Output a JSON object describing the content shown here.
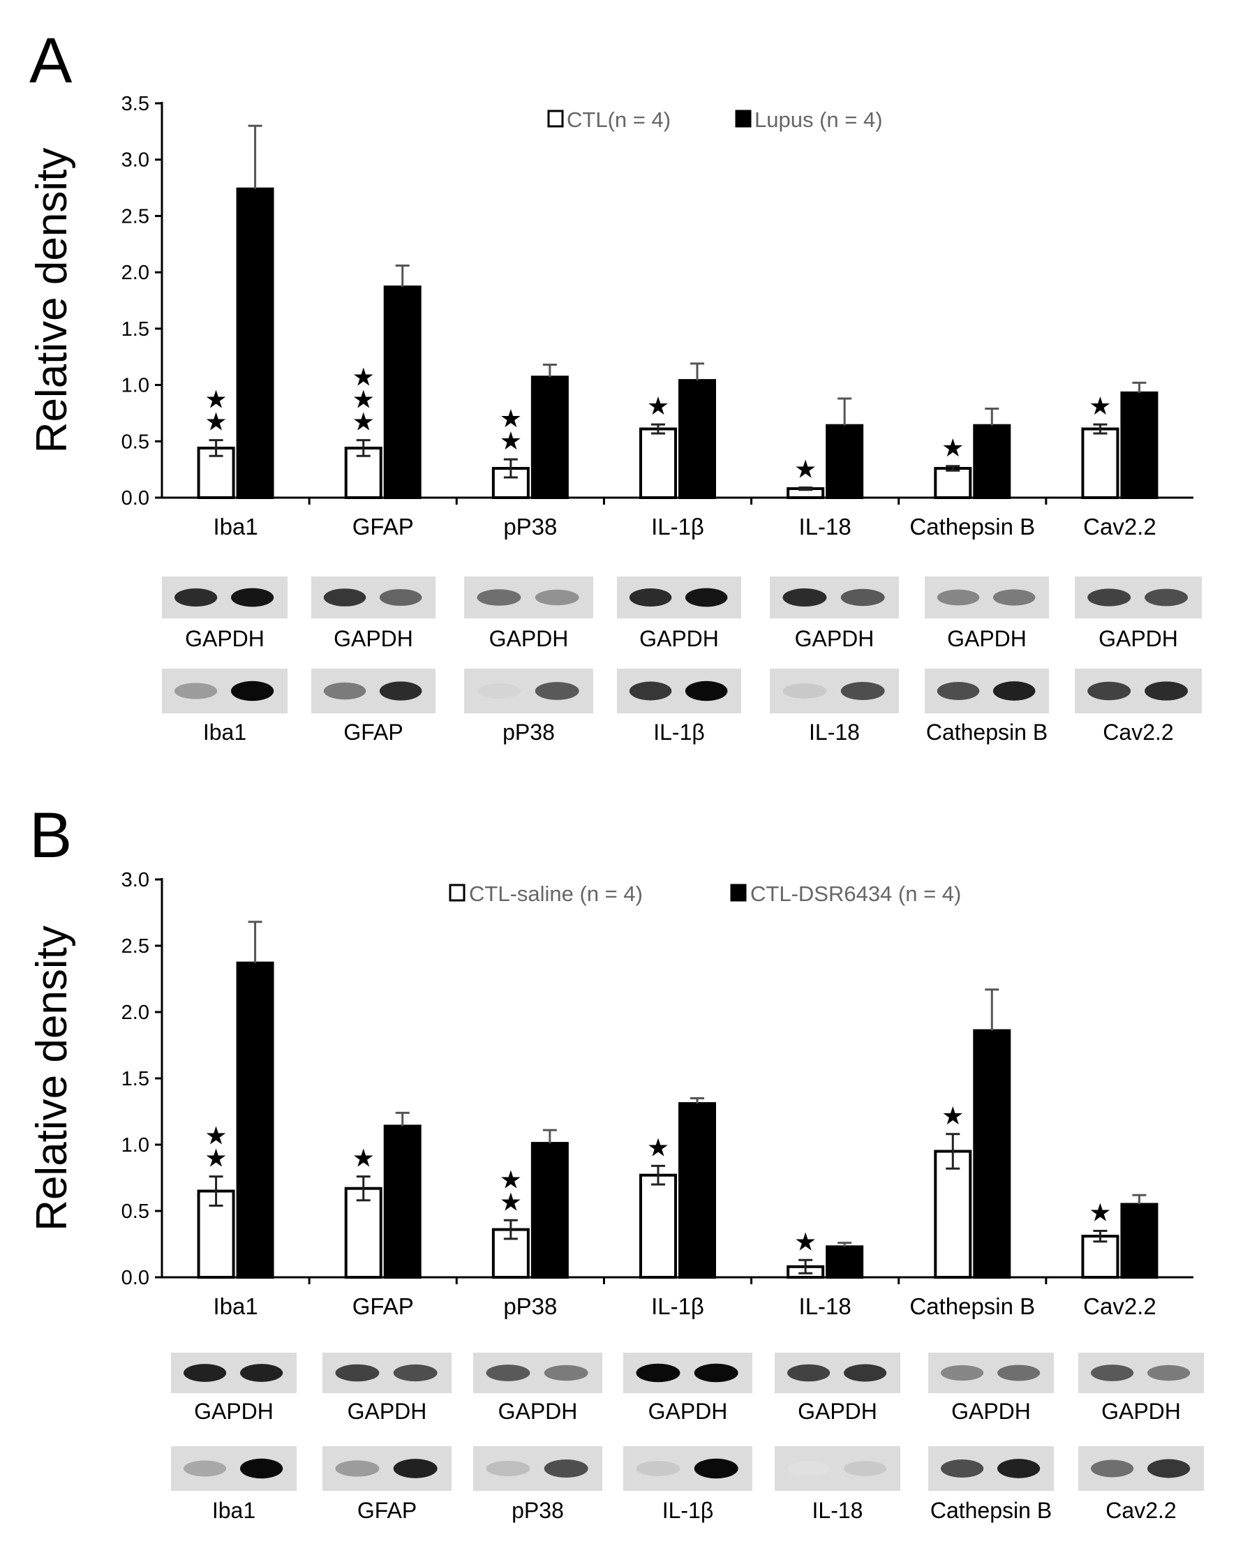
{
  "chart_data": [
    {
      "type": "bar",
      "panel_label": "A",
      "ylabel": "Relative density",
      "ylim": [
        0,
        3.5
      ],
      "yticks": [
        "0.0",
        "0.5",
        "1.0",
        "1.5",
        "2.0",
        "2.5",
        "3.0",
        "3.5"
      ],
      "categories": [
        "Iba1",
        "GFAP",
        "pP38",
        "IL-1β",
        "IL-18",
        "Cathepsin B",
        "Cav2.2"
      ],
      "series": [
        {
          "name": "CTL(n = 4)",
          "fill": "#ffffff",
          "values": [
            0.44,
            0.44,
            0.26,
            0.61,
            0.08,
            0.26,
            0.61
          ],
          "errors": [
            0.07,
            0.07,
            0.08,
            0.04,
            0.01,
            0.02,
            0.04
          ]
        },
        {
          "name": "Lupus (n = 4)",
          "fill": "#000000",
          "values": [
            2.74,
            1.87,
            1.07,
            1.04,
            0.64,
            0.64,
            0.93
          ],
          "errors": [
            0.56,
            0.19,
            0.11,
            0.15,
            0.24,
            0.15,
            0.09
          ]
        }
      ],
      "significance": [
        "★★",
        "★★★",
        "★★",
        "★",
        "★",
        "★",
        "★"
      ],
      "blots": {
        "loading_labels": [
          "GAPDH",
          "GAPDH",
          "GAPDH",
          "GAPDH",
          "GAPDH",
          "GAPDH",
          "GAPDH"
        ],
        "protein_labels": [
          "Iba1",
          "GFAP",
          "pP38",
          "IL-1β",
          "IL-18",
          "Cathepsin B",
          "Cav2.2"
        ],
        "gapdh_intensity": [
          [
            0.85,
            0.95
          ],
          [
            0.8,
            0.6
          ],
          [
            0.55,
            0.4
          ],
          [
            0.85,
            0.95
          ],
          [
            0.85,
            0.65
          ],
          [
            0.45,
            0.5
          ],
          [
            0.75,
            0.7
          ]
        ],
        "protein_intensity": [
          [
            0.35,
            1.0
          ],
          [
            0.5,
            0.85
          ],
          [
            0.1,
            0.65
          ],
          [
            0.8,
            1.0
          ],
          [
            0.15,
            0.7
          ],
          [
            0.7,
            0.9
          ],
          [
            0.75,
            0.85
          ]
        ]
      }
    },
    {
      "type": "bar",
      "panel_label": "B",
      "ylabel": "Relative density",
      "ylim": [
        0,
        3.0
      ],
      "yticks": [
        "0.0",
        "0.5",
        "1.0",
        "1.5",
        "2.0",
        "2.5",
        "3.0"
      ],
      "categories": [
        "Iba1",
        "GFAP",
        "pP38",
        "IL-1β",
        "IL-18",
        "Cathepsin B",
        "Cav2.2"
      ],
      "series": [
        {
          "name": "CTL-saline (n = 4)",
          "fill": "#ffffff",
          "values": [
            0.65,
            0.67,
            0.36,
            0.77,
            0.08,
            0.95,
            0.31
          ],
          "errors": [
            0.11,
            0.09,
            0.07,
            0.07,
            0.05,
            0.13,
            0.04
          ]
        },
        {
          "name": "CTL-DSR6434 (n = 4)",
          "fill": "#000000",
          "values": [
            2.37,
            1.14,
            1.01,
            1.31,
            0.23,
            1.86,
            0.55
          ],
          "errors": [
            0.31,
            0.1,
            0.1,
            0.04,
            0.03,
            0.31,
            0.07
          ]
        }
      ],
      "significance": [
        "★★",
        "★",
        "★★",
        "★",
        "★",
        "★",
        "★"
      ],
      "blots": {
        "loading_labels": [
          "GAPDH",
          "GAPDH",
          "GAPDH",
          "GAPDH",
          "GAPDH",
          "GAPDH",
          "GAPDH"
        ],
        "protein_labels": [
          "Iba1",
          "GFAP",
          "pP38",
          "IL-1β",
          "IL-18",
          "Cathepsin B",
          "Cav2.2"
        ],
        "gapdh_intensity": [
          [
            0.9,
            0.9
          ],
          [
            0.75,
            0.7
          ],
          [
            0.65,
            0.5
          ],
          [
            1.0,
            1.0
          ],
          [
            0.75,
            0.8
          ],
          [
            0.45,
            0.55
          ],
          [
            0.65,
            0.5
          ]
        ],
        "protein_intensity": [
          [
            0.3,
            1.0
          ],
          [
            0.35,
            0.9
          ],
          [
            0.2,
            0.7
          ],
          [
            0.15,
            1.0
          ],
          [
            0.05,
            0.15
          ],
          [
            0.7,
            0.9
          ],
          [
            0.55,
            0.8
          ]
        ]
      }
    }
  ]
}
